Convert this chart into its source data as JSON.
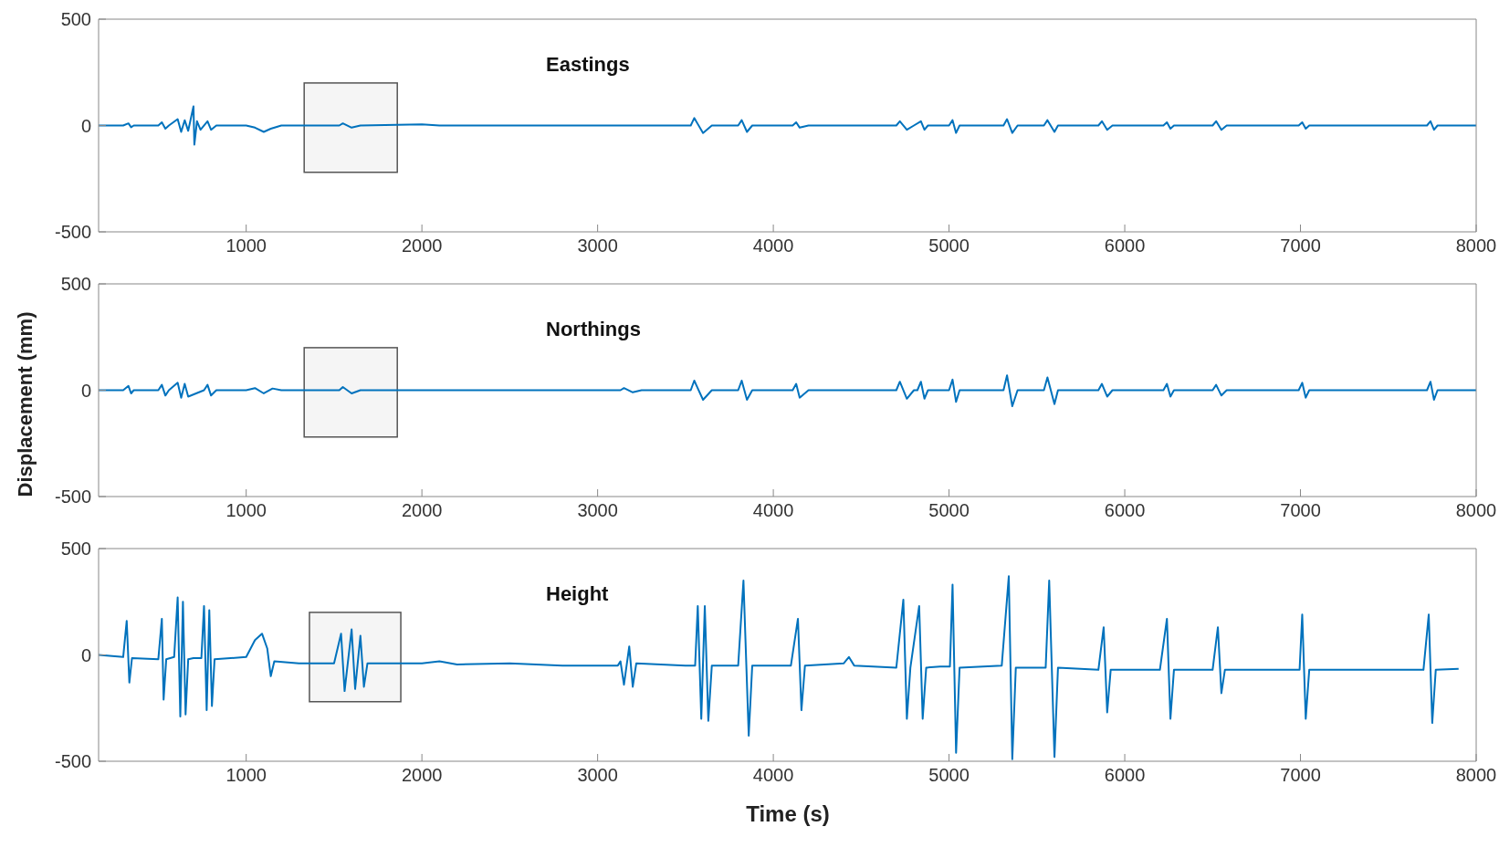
{
  "chart_data": [
    {
      "type": "line",
      "annotations": [
        "Eastings"
      ],
      "xlim": [
        160,
        8000
      ],
      "xticks": [
        1000,
        2000,
        3000,
        4000,
        5000,
        6000,
        7000,
        8000
      ],
      "ylim": [
        -500,
        500
      ],
      "yticks": [
        -500,
        0,
        500
      ],
      "grid": false,
      "legend": false,
      "marker": "none",
      "line_style": "solid",
      "bands": [
        {
          "axis": "x",
          "from": 1330,
          "to": 1860
        }
      ],
      "series": [
        {
          "color": "#0072bd",
          "x": [
            160,
            300,
            330,
            345,
            360,
            500,
            520,
            540,
            560,
            610,
            630,
            650,
            670,
            700,
            705,
            720,
            740,
            780,
            800,
            830,
            1000,
            1050,
            1100,
            1140,
            1200,
            1530,
            1550,
            1600,
            1650,
            2000,
            2100,
            3200,
            3530,
            3550,
            3600,
            3650,
            3800,
            3820,
            3850,
            3880,
            4110,
            4130,
            4150,
            4200,
            4400,
            4700,
            4720,
            4760,
            4800,
            4840,
            4860,
            4880,
            5000,
            5020,
            5040,
            5060,
            5310,
            5330,
            5360,
            5390,
            5540,
            5560,
            5600,
            5620,
            5850,
            5870,
            5900,
            5930,
            6220,
            6240,
            6260,
            6280,
            6500,
            6520,
            6550,
            6580,
            6990,
            7010,
            7030,
            7050,
            7720,
            7740,
            7760,
            7780,
            8000
          ],
          "values": [
            0,
            0,
            10,
            -8,
            0,
            0,
            15,
            -15,
            0,
            30,
            -30,
            25,
            -25,
            90,
            -90,
            20,
            -20,
            20,
            -20,
            0,
            0,
            -10,
            -30,
            -15,
            0,
            0,
            10,
            -10,
            0,
            5,
            0,
            0,
            0,
            35,
            -35,
            0,
            0,
            25,
            -30,
            0,
            0,
            15,
            -10,
            0,
            0,
            0,
            20,
            -20,
            0,
            20,
            -20,
            0,
            0,
            25,
            -35,
            0,
            0,
            30,
            -35,
            0,
            0,
            25,
            -30,
            0,
            0,
            20,
            -20,
            0,
            0,
            15,
            -15,
            0,
            0,
            20,
            -20,
            0,
            0,
            15,
            -15,
            0,
            0,
            20,
            -20,
            0,
            0
          ]
        }
      ]
    },
    {
      "type": "line",
      "ylabel": "Displacement (mm)",
      "annotations": [
        "Northings"
      ],
      "xlim": [
        160,
        8000
      ],
      "xticks": [
        1000,
        2000,
        3000,
        4000,
        5000,
        6000,
        7000,
        8000
      ],
      "ylim": [
        -500,
        500
      ],
      "yticks": [
        -500,
        0,
        500
      ],
      "grid": false,
      "legend": false,
      "marker": "none",
      "line_style": "solid",
      "bands": [
        {
          "axis": "x",
          "from": 1330,
          "to": 1860
        }
      ],
      "series": [
        {
          "color": "#0072bd",
          "x": [
            160,
            300,
            330,
            345,
            360,
            500,
            520,
            540,
            560,
            610,
            630,
            650,
            670,
            760,
            780,
            800,
            830,
            1000,
            1050,
            1100,
            1150,
            1200,
            1530,
            1550,
            1600,
            1650,
            2000,
            3130,
            3150,
            3200,
            3250,
            3530,
            3550,
            3600,
            3650,
            3800,
            3820,
            3850,
            3880,
            4110,
            4130,
            4150,
            4200,
            4700,
            4720,
            4760,
            4800,
            4820,
            4840,
            4860,
            4880,
            5000,
            5020,
            5040,
            5060,
            5310,
            5330,
            5360,
            5390,
            5540,
            5560,
            5600,
            5620,
            5850,
            5870,
            5900,
            5930,
            6220,
            6240,
            6260,
            6280,
            6500,
            6520,
            6550,
            6580,
            6990,
            7010,
            7030,
            7050,
            7720,
            7740,
            7760,
            7780,
            8000
          ],
          "values": [
            0,
            0,
            20,
            -15,
            0,
            0,
            25,
            -25,
            0,
            35,
            -35,
            30,
            -30,
            0,
            25,
            -25,
            0,
            0,
            10,
            -15,
            8,
            0,
            0,
            15,
            -15,
            0,
            0,
            0,
            10,
            -10,
            0,
            0,
            45,
            -45,
            0,
            0,
            45,
            -45,
            0,
            0,
            30,
            -35,
            0,
            0,
            40,
            -40,
            0,
            0,
            40,
            -40,
            0,
            0,
            50,
            -55,
            0,
            0,
            70,
            -75,
            0,
            0,
            60,
            -65,
            0,
            0,
            30,
            -30,
            0,
            0,
            30,
            -30,
            0,
            0,
            25,
            -25,
            0,
            0,
            35,
            -35,
            0,
            0,
            40,
            -45,
            0,
            0
          ]
        }
      ]
    },
    {
      "type": "line",
      "xlabel": "Time (s)",
      "annotations": [
        "Height"
      ],
      "xlim": [
        160,
        8000
      ],
      "xticks": [
        1000,
        2000,
        3000,
        4000,
        5000,
        6000,
        7000,
        8000
      ],
      "ylim": [
        -500,
        500
      ],
      "yticks": [
        -500,
        0,
        500
      ],
      "grid": false,
      "legend": false,
      "marker": "none",
      "line_style": "solid",
      "bands": [
        {
          "axis": "x",
          "from": 1360,
          "to": 1880
        }
      ],
      "series": [
        {
          "color": "#0072bd",
          "x": [
            160,
            300,
            320,
            335,
            350,
            500,
            520,
            530,
            545,
            590,
            610,
            625,
            640,
            655,
            670,
            700,
            745,
            760,
            775,
            790,
            805,
            820,
            1000,
            1050,
            1090,
            1120,
            1140,
            1160,
            1300,
            1500,
            1540,
            1560,
            1600,
            1620,
            1650,
            1670,
            1690,
            2000,
            2100,
            2200,
            2500,
            2800,
            3115,
            3130,
            3150,
            3180,
            3200,
            3220,
            3500,
            3555,
            3570,
            3590,
            3610,
            3630,
            3650,
            3800,
            3830,
            3860,
            3880,
            4100,
            4140,
            4160,
            4180,
            4400,
            4430,
            4460,
            4700,
            4740,
            4760,
            4780,
            4830,
            4850,
            4870,
            4950,
            5005,
            5020,
            5040,
            5060,
            5300,
            5340,
            5360,
            5380,
            5550,
            5570,
            5600,
            5620,
            5850,
            5880,
            5900,
            5920,
            6200,
            6240,
            6260,
            6280,
            6500,
            6530,
            6550,
            6570,
            6950,
            6995,
            7010,
            7030,
            7050,
            7300,
            7700,
            7730,
            7750,
            7770,
            7900
          ],
          "values": [
            0,
            -10,
            160,
            -130,
            -15,
            -20,
            170,
            -210,
            -20,
            -10,
            270,
            -290,
            250,
            -280,
            -20,
            -15,
            -15,
            230,
            -260,
            210,
            -240,
            -20,
            -10,
            70,
            100,
            30,
            -100,
            -30,
            -40,
            -40,
            100,
            -170,
            120,
            -160,
            90,
            -150,
            -40,
            -40,
            -30,
            -45,
            -40,
            -50,
            -50,
            -30,
            -140,
            40,
            -150,
            -40,
            -50,
            -50,
            230,
            -300,
            230,
            -310,
            -50,
            -50,
            350,
            -380,
            -50,
            -50,
            170,
            -260,
            -50,
            -40,
            -10,
            -50,
            -60,
            260,
            -300,
            -60,
            230,
            -300,
            -60,
            -55,
            -55,
            330,
            -460,
            -60,
            -50,
            370,
            -490,
            -60,
            -60,
            350,
            -480,
            -60,
            -70,
            130,
            -270,
            -70,
            -70,
            170,
            -300,
            -70,
            -70,
            130,
            -180,
            -70,
            -70,
            -70,
            190,
            -300,
            -70,
            -70,
            -70,
            190,
            -320,
            -70,
            -65
          ]
        }
      ]
    }
  ]
}
